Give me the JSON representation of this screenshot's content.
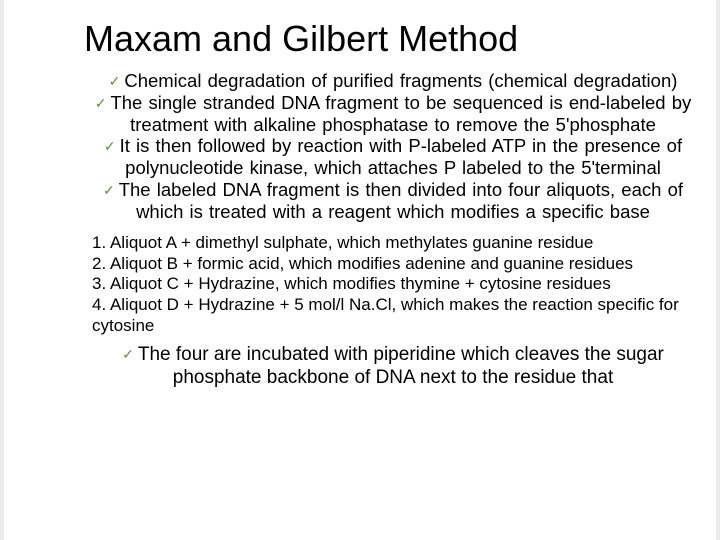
{
  "title": "Maxam and Gilbert Method",
  "check_glyph": "✓",
  "bullets_top": [
    "Chemical degradation of purified fragments  (chemical degradation)",
    "The single stranded DNA fragment to be sequenced is end-labeled by treatment with alkaline phosphatase to remove the 5'phosphate",
    "It is then followed by reaction with P-labeled ATP in the presence of polynucleotide kinase, which attaches P labeled to the 5'terminal",
    "The labeled DNA fragment is then divided into four aliquots, each of which is treated with a reagent which modifies a specific base"
  ],
  "numbered": [
    "1. Aliquot A + dimethyl sulphate, which methylates guanine residue",
    "2. Aliquot B + formic acid, which modifies adenine and guanine residues",
    "3. Aliquot C + Hydrazine, which modifies thymine + cytosine residues",
    "4. Aliquot D + Hydrazine + 5 mol/l Na.Cl, which makes the reaction specific for cytosine"
  ],
  "bullets_bottom": [
    "The four are incubated with piperidine which cleaves the sugar phosphate backbone of DNA next to the residue that"
  ],
  "colors": {
    "check": "#5c913b",
    "text": "#000000",
    "background": "#ffffff"
  }
}
